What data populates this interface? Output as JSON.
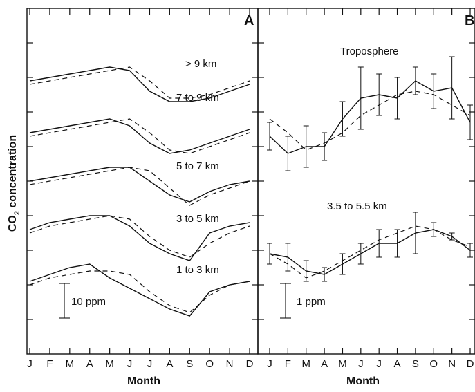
{
  "figure": {
    "ylabel": "CO2 concentration",
    "ylabel_main": "CO",
    "ylabel_sub": "2",
    "ylabel_rest": " concentration"
  },
  "chart_data": [
    {
      "type": "line",
      "panel_label": "A",
      "xlabel": "Month",
      "x_ticks": [
        "J",
        "F",
        "M",
        "A",
        "M",
        "J",
        "J",
        "A",
        "S",
        "O",
        "N",
        "D"
      ],
      "ylabel": "CO2 concentration",
      "ylim": [
        0,
        80
      ],
      "scale_bar": "10 ppm",
      "groups": [
        {
          "label": "> 9 km",
          "series": [
            {
              "style": "solid",
              "values": [
                69,
                70,
                71,
                72,
                73,
                72,
                66,
                63,
                63,
                64,
                66,
                68
              ]
            },
            {
              "style": "dashed",
              "values": [
                68,
                69,
                70,
                71,
                72,
                73,
                69,
                64,
                64,
                65,
                67,
                69
              ]
            }
          ]
        },
        {
          "label": "7 to 9 km",
          "series": [
            {
              "style": "solid",
              "values": [
                54,
                55,
                56,
                57,
                58,
                56,
                51,
                48,
                49,
                51,
                53,
                55
              ]
            },
            {
              "style": "dashed",
              "values": [
                53,
                54,
                55,
                56,
                57,
                58,
                54,
                49,
                48,
                50,
                52,
                54
              ]
            }
          ]
        },
        {
          "label": "5 to 7 km",
          "series": [
            {
              "style": "solid",
              "values": [
                40,
                41,
                42,
                43,
                44,
                44,
                40,
                36,
                34,
                37,
                39,
                40
              ]
            },
            {
              "style": "dashed",
              "values": [
                39,
                40,
                41,
                42,
                43,
                44,
                43,
                38,
                33,
                36,
                38,
                40
              ]
            }
          ]
        },
        {
          "label": "3 to 5 km",
          "series": [
            {
              "style": "solid",
              "values": [
                26,
                28,
                29,
                30,
                30,
                27,
                22,
                19,
                17,
                25,
                27,
                28
              ]
            },
            {
              "style": "dashed",
              "values": [
                25,
                27,
                28,
                29,
                30,
                29,
                24,
                20,
                18,
                22,
                25,
                27
              ]
            }
          ]
        },
        {
          "label": "1 to 3 km",
          "series": [
            {
              "style": "solid",
              "values": [
                11,
                13,
                15,
                16,
                12,
                9,
                6,
                3,
                1,
                8,
                10,
                11
              ]
            },
            {
              "style": "dashed",
              "values": [
                10,
                12,
                13,
                14,
                14,
                13,
                8,
                4,
                2,
                7,
                10,
                11
              ]
            }
          ]
        }
      ]
    },
    {
      "type": "line",
      "panel_label": "B",
      "xlabel": "Month",
      "x_ticks": [
        "J",
        "F",
        "M",
        "A",
        "M",
        "J",
        "J",
        "A",
        "S",
        "O",
        "N",
        "D"
      ],
      "ylabel": "CO2 concentration",
      "ylim": [
        0,
        80
      ],
      "scale_bar": "1 ppm",
      "groups": [
        {
          "label": "Troposphere",
          "series": [
            {
              "style": "solid",
              "values": [
                53,
                48,
                50,
                50,
                58,
                64,
                65,
                64,
                69,
                66,
                67,
                57
              ],
              "error": [
                4,
                5,
                6,
                4,
                5,
                9,
                6,
                6,
                4,
                5,
                9,
                5
              ]
            },
            {
              "style": "dashed",
              "values": [
                58,
                54,
                49,
                51,
                54,
                59,
                62,
                65,
                66,
                65,
                62,
                59
              ]
            }
          ]
        },
        {
          "label": "3.5 to 5.5 km",
          "series": [
            {
              "style": "solid",
              "values": [
                19,
                18,
                14,
                13,
                16,
                19,
                22,
                22,
                25,
                26,
                24,
                20
              ],
              "error": [
                3,
                4,
                3,
                2,
                3,
                3,
                4,
                4,
                6,
                2,
                1,
                2
              ]
            },
            {
              "style": "dashed",
              "values": [
                19,
                16,
                12,
                14,
                17,
                20,
                23,
                25,
                27,
                26,
                23,
                21
              ]
            }
          ]
        }
      ]
    }
  ]
}
